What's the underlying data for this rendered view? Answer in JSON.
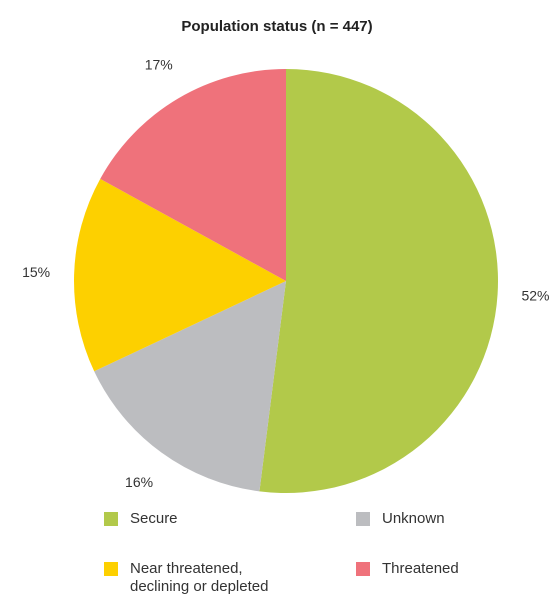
{
  "chart_data": {
    "type": "pie",
    "title": "Population status (n = 447)",
    "slices": [
      {
        "label": "Secure",
        "value": 52,
        "value_label": "52%",
        "color": "#b2c94a"
      },
      {
        "label": "Unknown",
        "value": 16,
        "value_label": "16%",
        "color": "#bcbdc0"
      },
      {
        "label": "Near threatened,\ndeclining or depleted",
        "value": 15,
        "value_label": "15%",
        "color": "#fdd000"
      },
      {
        "label": "Threatened",
        "value": 17,
        "value_label": "17%",
        "color": "#ef727b"
      }
    ],
    "legend_position": "bottom"
  }
}
